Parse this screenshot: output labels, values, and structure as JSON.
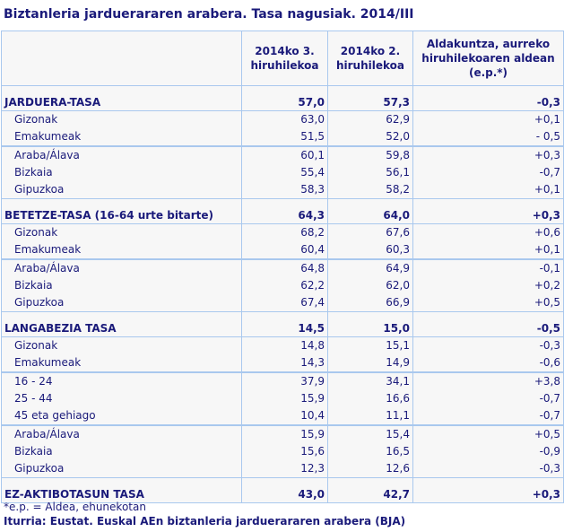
{
  "title": "Biztanleria jarduerararen arabera. Tasa nagusiak. 2014/III",
  "headers": [
    "",
    "2014ko 3. hiruhilekoa",
    "2014ko 2. hiruhilekoa",
    "Aldakuntza, aurreko hiruhilekoaren aldean (e.p.*)"
  ],
  "rows": [
    {
      "type": "sec",
      "label": "JARDUERA-TASA",
      "v": [
        "57,0",
        "57,3",
        "-0,3"
      ]
    },
    {
      "type": "row",
      "label": "Gizonak",
      "v": [
        "63,0",
        "62,9",
        "+0,1"
      ]
    },
    {
      "type": "end",
      "label": "Emakumeak",
      "v": [
        "51,5",
        "52,0",
        "- 0,5"
      ]
    },
    {
      "type": "row",
      "label": "Araba/Álava",
      "v": [
        "60,1",
        "59,8",
        "+0,3"
      ]
    },
    {
      "type": "row",
      "label": "Bizkaia",
      "v": [
        "55,4",
        "56,1",
        "-0,7"
      ]
    },
    {
      "type": "last",
      "label": "Gipuzkoa",
      "v": [
        "58,3",
        "58,2",
        "+0,1"
      ]
    },
    {
      "type": "sec",
      "label": "BETETZE-TASA (16-64 urte bitarte)",
      "v": [
        "64,3",
        "64,0",
        "+0,3"
      ]
    },
    {
      "type": "row",
      "label": "Gizonak",
      "v": [
        "68,2",
        "67,6",
        "+0,6"
      ]
    },
    {
      "type": "end",
      "label": "Emakumeak",
      "v": [
        "60,4",
        "60,3",
        "+0,1"
      ]
    },
    {
      "type": "row",
      "label": "Araba/Álava",
      "v": [
        "64,8",
        "64,9",
        "-0,1"
      ]
    },
    {
      "type": "row",
      "label": "Bizkaia",
      "v": [
        "62,2",
        "62,0",
        "+0,2"
      ]
    },
    {
      "type": "last",
      "label": "Gipuzkoa",
      "v": [
        "67,4",
        "66,9",
        "+0,5"
      ]
    },
    {
      "type": "sec",
      "label": "LANGABEZIA TASA",
      "v": [
        "14,5",
        "15,0",
        "-0,5"
      ]
    },
    {
      "type": "row",
      "label": "Gizonak",
      "v": [
        "14,8",
        "15,1",
        "-0,3"
      ]
    },
    {
      "type": "end",
      "label": "Emakumeak",
      "v": [
        "14,3",
        "14,9",
        "-0,6"
      ]
    },
    {
      "type": "row",
      "label": "16 - 24",
      "v": [
        "37,9",
        "34,1",
        "+3,8"
      ]
    },
    {
      "type": "row",
      "label": "25 - 44",
      "v": [
        "15,9",
        "16,6",
        "-0,7"
      ]
    },
    {
      "type": "end",
      "label": "45 eta gehiago",
      "v": [
        "10,4",
        "11,1",
        "-0,7"
      ]
    },
    {
      "type": "row",
      "label": "Araba/Álava",
      "v": [
        "15,9",
        "15,4",
        "+0,5"
      ]
    },
    {
      "type": "row",
      "label": "Bizkaia",
      "v": [
        "15,6",
        "16,5",
        "-0,9"
      ]
    },
    {
      "type": "last",
      "label": "Gipuzkoa",
      "v": [
        "12,3",
        "12,6",
        "-0,3"
      ]
    },
    {
      "type": "sec",
      "label": "EZ-AKTIBOTASUN  TASA",
      "v": [
        "43,0",
        "42,7",
        "+0,3"
      ]
    }
  ],
  "footnote": "*e.p. = Aldea, ehunekotan",
  "source": "Iturria: Eustat. Euskal AEn biztanleria jarduerararen arabera (BJA)"
}
